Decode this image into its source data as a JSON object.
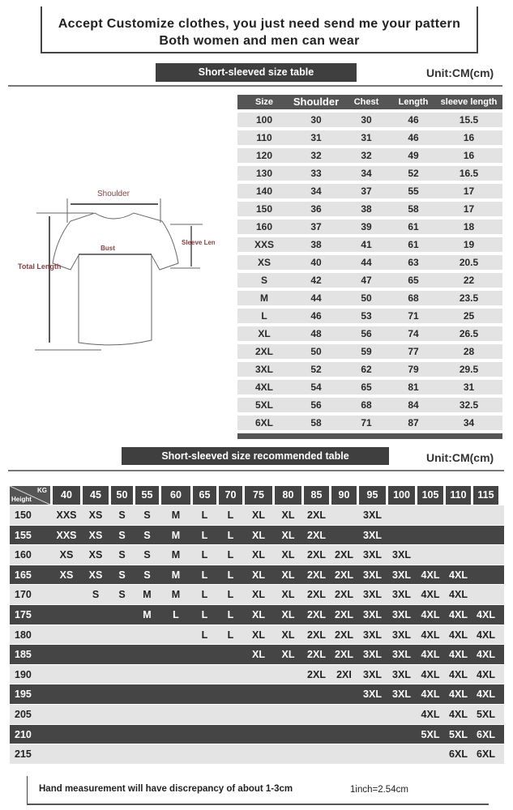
{
  "banner": {
    "line1": "Accept Customize clothes, you just need send me your pattern",
    "line2": "Both women and men can wear"
  },
  "size_section": {
    "title": "Short-sleeved size  table",
    "unit": "Unit:CM(cm)"
  },
  "diagram": {
    "shoulder": "Shoulder",
    "bust": "Bust",
    "sleeve_length": "Sleeve Length",
    "total_length": "Total Length"
  },
  "size_table": {
    "headers": [
      "Size",
      "Shoulder",
      "Chest",
      "Length",
      "sleeve length"
    ],
    "rows": [
      [
        "100",
        "30",
        "30",
        "46",
        "15.5"
      ],
      [
        "110",
        "31",
        "31",
        "46",
        "16"
      ],
      [
        "120",
        "32",
        "32",
        "49",
        "16"
      ],
      [
        "130",
        "33",
        "34",
        "52",
        "16.5"
      ],
      [
        "140",
        "34",
        "37",
        "55",
        "17"
      ],
      [
        "150",
        "36",
        "38",
        "58",
        "17"
      ],
      [
        "160",
        "37",
        "39",
        "61",
        "18"
      ],
      [
        "XXS",
        "38",
        "41",
        "61",
        "19"
      ],
      [
        "XS",
        "40",
        "44",
        "63",
        "20.5"
      ],
      [
        "S",
        "42",
        "47",
        "65",
        "22"
      ],
      [
        "M",
        "44",
        "50",
        "68",
        "23.5"
      ],
      [
        "L",
        "46",
        "53",
        "71",
        "25"
      ],
      [
        "XL",
        "48",
        "56",
        "74",
        "26.5"
      ],
      [
        "2XL",
        "50",
        "59",
        "77",
        "28"
      ],
      [
        "3XL",
        "52",
        "62",
        "79",
        "29.5"
      ],
      [
        "4XL",
        "54",
        "65",
        "81",
        "31"
      ],
      [
        "5XL",
        "56",
        "68",
        "84",
        "32.5"
      ],
      [
        "6XL",
        "58",
        "71",
        "87",
        "34"
      ]
    ]
  },
  "rec_section": {
    "title": "Short-sleeved size recommended table",
    "unit": "Unit:CM(cm)"
  },
  "rec_table": {
    "corner_kg": "KG",
    "corner_height": "Height",
    "weights": [
      "40",
      "45",
      "50",
      "55",
      "60",
      "65",
      "70",
      "75",
      "80",
      "85",
      "90",
      "95",
      "100",
      "105",
      "110",
      "115"
    ],
    "rows": [
      {
        "height": "150",
        "sizes": [
          "XXS",
          "XS",
          "S",
          "S",
          "M",
          "L",
          "L",
          "XL",
          "XL",
          "2XL",
          "",
          "3XL",
          "",
          "",
          "",
          ""
        ]
      },
      {
        "height": "155",
        "sizes": [
          "XXS",
          "XS",
          "S",
          "S",
          "M",
          "L",
          "L",
          "XL",
          "XL",
          "2XL",
          "",
          "3XL",
          "",
          "",
          "",
          ""
        ]
      },
      {
        "height": "160",
        "sizes": [
          "XS",
          "XS",
          "S",
          "S",
          "M",
          "L",
          "L",
          "XL",
          "XL",
          "2XL",
          "2XL",
          "3XL",
          "3XL",
          "",
          "",
          ""
        ]
      },
      {
        "height": "165",
        "sizes": [
          "XS",
          "XS",
          "S",
          "S",
          "M",
          "L",
          "L",
          "XL",
          "XL",
          "2XL",
          "2XL",
          "3XL",
          "3XL",
          "4XL",
          "4XL",
          ""
        ]
      },
      {
        "height": "170",
        "sizes": [
          "",
          "S",
          "S",
          "M",
          "M",
          "L",
          "L",
          "XL",
          "XL",
          "2XL",
          "2XL",
          "3XL",
          "3XL",
          "4XL",
          "4XL",
          ""
        ]
      },
      {
        "height": "175",
        "sizes": [
          "",
          "",
          "",
          "M",
          "L",
          "L",
          "L",
          "XL",
          "XL",
          "2XL",
          "2XL",
          "3XL",
          "3XL",
          "4XL",
          "4XL",
          "4XL"
        ]
      },
      {
        "height": "180",
        "sizes": [
          "",
          "",
          "",
          "",
          "",
          "L",
          "L",
          "XL",
          "XL",
          "2XL",
          "2XL",
          "3XL",
          "3XL",
          "4XL",
          "4XL",
          "4XL"
        ]
      },
      {
        "height": "185",
        "sizes": [
          "",
          "",
          "",
          "",
          "",
          "",
          "",
          "XL",
          "XL",
          "2XL",
          "2XL",
          "3XL",
          "3XL",
          "4XL",
          "4XL",
          "4XL"
        ]
      },
      {
        "height": "190",
        "sizes": [
          "",
          "",
          "",
          "",
          "",
          "",
          "",
          "",
          "",
          "2XL",
          "2XI",
          "3XL",
          "3XL",
          "4XL",
          "4XL",
          "4XL"
        ]
      },
      {
        "height": "195",
        "sizes": [
          "",
          "",
          "",
          "",
          "",
          "",
          "",
          "",
          "",
          "",
          "",
          "3XL",
          "3XL",
          "4XL",
          "4XL",
          "4XL"
        ]
      },
      {
        "height": "205",
        "sizes": [
          "",
          "",
          "",
          "",
          "",
          "",
          "",
          "",
          "",
          "",
          "",
          "",
          "",
          "4XL",
          "4XL",
          "5XL"
        ]
      },
      {
        "height": "210",
        "sizes": [
          "",
          "",
          "",
          "",
          "",
          "",
          "",
          "",
          "",
          "",
          "",
          "",
          "",
          "5XL",
          "5XL",
          "6XL"
        ]
      },
      {
        "height": "215",
        "sizes": [
          "",
          "",
          "",
          "",
          "",
          "",
          "",
          "",
          "",
          "",
          "",
          "",
          "",
          "",
          "6XL",
          "6XL"
        ]
      }
    ]
  },
  "footer": {
    "note": "Hand measurement will have discrepancy of about  1-3cm",
    "conversion": "1inch=2.54cm"
  },
  "colors": {
    "header_dark": "#3f3f3f",
    "row_light": "#e4e4e4",
    "diagram_label": "#8b4040"
  }
}
